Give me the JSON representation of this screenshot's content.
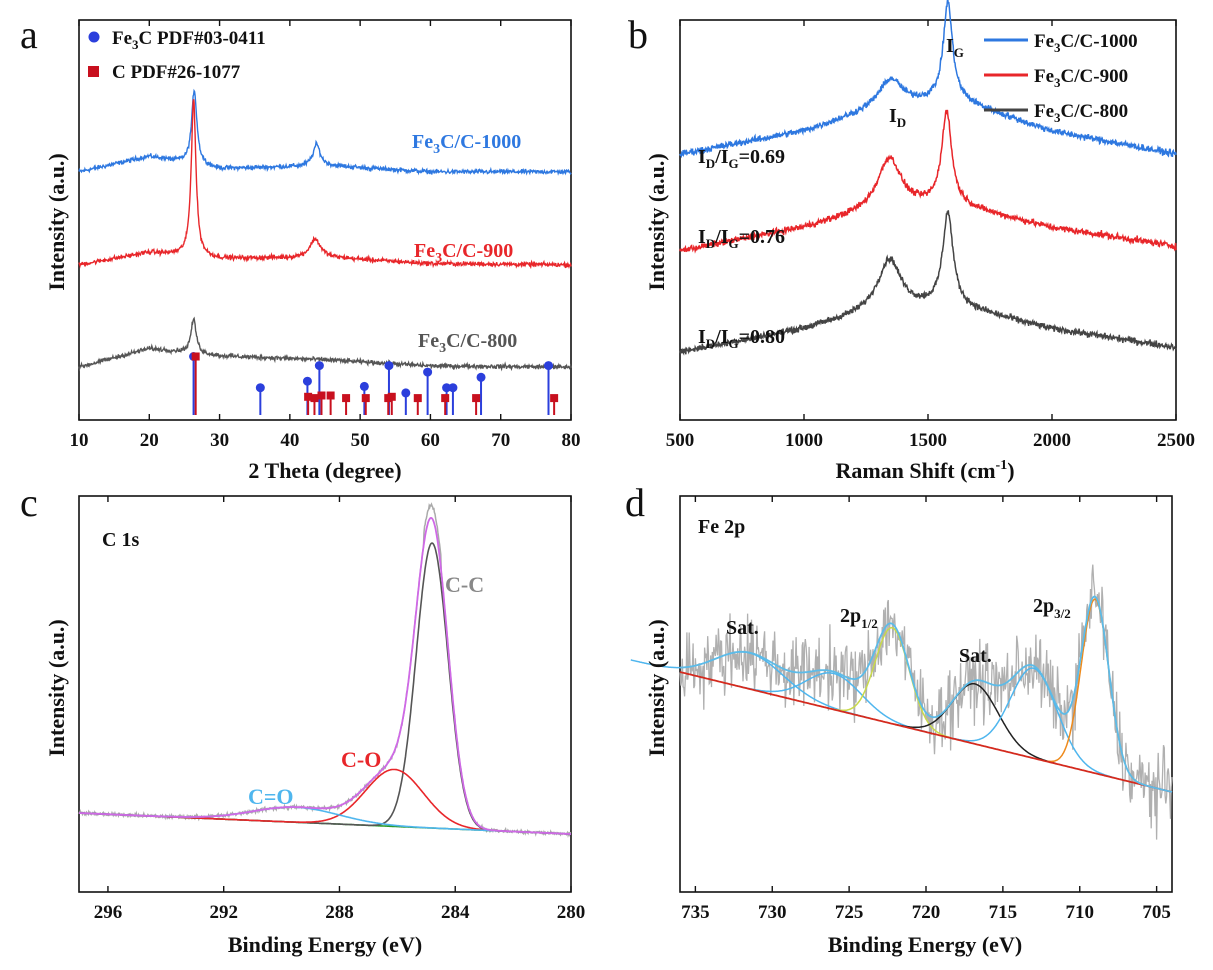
{
  "panels": {
    "a": {
      "letter": "a",
      "xlabel": "2 Theta (degree)",
      "ylabel": "Intensity (a.u.)",
      "xticks": [
        "10",
        "20",
        "30",
        "40",
        "50",
        "60",
        "70",
        "80"
      ],
      "legend": [
        {
          "pre": "Fe",
          "sub": "3",
          "post": "C PDF#03-0411",
          "color": "#2b3fdc",
          "marker": "circle"
        },
        {
          "pre": "C PDF#26-1077",
          "sub": "",
          "post": "",
          "color": "#c8101e",
          "marker": "square"
        }
      ],
      "series_labels": [
        {
          "pre": "Fe",
          "sub": "3",
          "post": "C/C-1000",
          "color": "#2e78e0"
        },
        {
          "pre": "Fe",
          "sub": "3",
          "post": "C/C-900",
          "color": "#e8262a"
        },
        {
          "pre": "Fe",
          "sub": "3",
          "post": "C/C-800",
          "color": "#555555"
        }
      ]
    },
    "b": {
      "letter": "b",
      "xlabel": "Raman Shift (cm",
      "xlabel_sup": "-1",
      "xlabel_post": ")",
      "ylabel": "Intensity (a.u.)",
      "xticks": [
        "500",
        "1000",
        "1500",
        "2000",
        "2500"
      ],
      "legend": [
        {
          "pre": "Fe",
          "sub": "3",
          "post": "C/C-1000",
          "color": "#2e78e0"
        },
        {
          "pre": "Fe",
          "sub": "3",
          "post": "C/C-900",
          "color": "#e8262a"
        },
        {
          "pre": "Fe",
          "sub": "3",
          "post": "C/C-800",
          "color": "#444444"
        }
      ],
      "peak_labels": [
        {
          "main": "I",
          "sub": "D"
        },
        {
          "main": "I",
          "sub": "G"
        }
      ],
      "ratios": [
        {
          "i": "I",
          "d": "D",
          "slash": "/I",
          "g": "G",
          "val": "=0.69"
        },
        {
          "i": "I",
          "d": "D",
          "slash": "/I",
          "g": "G",
          "val": "=0.76"
        },
        {
          "i": "I",
          "d": "D",
          "slash": "/I",
          "g": "G",
          "val": "=0.80"
        }
      ]
    },
    "c": {
      "letter": "c",
      "title": "C 1s",
      "xlabel": "Binding Energy (eV)",
      "ylabel": "Intensity (a.u.)",
      "xticks": [
        "296",
        "292",
        "288",
        "284",
        "280"
      ],
      "peak_labels": [
        {
          "text": "C-C",
          "color": "#888888"
        },
        {
          "text": "C-O",
          "color": "#e8262a"
        },
        {
          "text": "C=O",
          "color": "#4fb6ee"
        }
      ]
    },
    "d": {
      "letter": "d",
      "title": "Fe 2p",
      "xlabel": "Binding Energy (eV)",
      "ylabel": "Intensity (a.u.)",
      "xticks": [
        "735",
        "730",
        "725",
        "720",
        "715",
        "710",
        "705"
      ],
      "peak_labels": [
        {
          "pre": "Sat.",
          "sub": ""
        },
        {
          "pre": "2p",
          "sub": "1/2"
        },
        {
          "pre": "Sat.",
          "sub": ""
        },
        {
          "pre": "2p",
          "sub": "3/2"
        }
      ]
    }
  },
  "chart_data": [
    {
      "panel": "a",
      "type": "line",
      "xlabel": "2 Theta (degree)",
      "ylabel": "Intensity (a.u.)",
      "xlim": [
        10,
        80
      ],
      "series": [
        {
          "name": "Fe3C/C-1000",
          "color": "#2e78e0",
          "offset": 3.6,
          "background": [
            [
              10,
              0.0
            ],
            [
              20,
              0.25
            ],
            [
              30,
              0.05
            ],
            [
              45,
              0.1
            ],
            [
              60,
              0.0
            ],
            [
              80,
              0.0
            ]
          ],
          "peaks": [
            [
              26.4,
              1.2,
              0.45
            ],
            [
              43.8,
              0.35,
              0.6
            ]
          ]
        },
        {
          "name": "Fe3C/C-900",
          "color": "#e8262a",
          "offset": 2.1,
          "background": [
            [
              10,
              0.0
            ],
            [
              20,
              0.2
            ],
            [
              30,
              0.1
            ],
            [
              45,
              0.12
            ],
            [
              60,
              0.02
            ],
            [
              80,
              0.0
            ]
          ],
          "peaks": [
            [
              26.3,
              2.55,
              0.4
            ],
            [
              43.6,
              0.3,
              0.9
            ]
          ]
        },
        {
          "name": "Fe3C/C-800",
          "color": "#555555",
          "offset": 0.45,
          "background": [
            [
              10,
              0.0
            ],
            [
              20,
              0.3
            ],
            [
              30,
              0.18
            ],
            [
              45,
              0.12
            ],
            [
              60,
              0.02
            ],
            [
              80,
              0.0
            ]
          ],
          "peaks": [
            [
              26.3,
              0.55,
              0.45
            ]
          ]
        }
      ],
      "reference_fe3c": [
        [
          26.3,
          0.45
        ],
        [
          35.8,
          0.21
        ],
        [
          42.5,
          0.26
        ],
        [
          44.2,
          0.38
        ],
        [
          50.6,
          0.22
        ],
        [
          54.1,
          0.38
        ],
        [
          56.5,
          0.17
        ],
        [
          59.6,
          0.33
        ],
        [
          62.3,
          0.21
        ],
        [
          63.2,
          0.21
        ],
        [
          67.2,
          0.29
        ],
        [
          76.8,
          0.38
        ]
      ],
      "reference_c": [
        [
          26.6,
          0.45
        ],
        [
          42.6,
          0.14
        ],
        [
          43.5,
          0.13
        ],
        [
          44.5,
          0.15
        ],
        [
          45.8,
          0.15
        ],
        [
          48.0,
          0.13
        ],
        [
          50.8,
          0.13
        ],
        [
          54.0,
          0.13
        ],
        [
          54.5,
          0.14
        ],
        [
          58.2,
          0.13
        ],
        [
          62.1,
          0.13
        ],
        [
          66.5,
          0.13
        ],
        [
          77.6,
          0.13
        ]
      ]
    },
    {
      "panel": "b",
      "type": "line",
      "xlabel": "Raman Shift (cm-1)",
      "ylabel": "Intensity (a.u.)",
      "xlim": [
        500,
        2500
      ],
      "series": [
        {
          "name": "Fe3C/C-1000",
          "color": "#2e78e0",
          "offset": 2.15,
          "background": [
            [
              500,
              0.0
            ],
            [
              1000,
              0.25
            ],
            [
              1300,
              0.5
            ],
            [
              1600,
              0.6
            ],
            [
              2000,
              0.25
            ],
            [
              2500,
              0.0
            ]
          ],
          "peaks": [
            [
              1350,
              0.3,
              55
            ],
            [
              1580,
              1.05,
              22
            ]
          ]
        },
        {
          "name": "Fe3C/C-900",
          "color": "#e8262a",
          "offset": 1.1,
          "background": [
            [
              500,
              0.0
            ],
            [
              1000,
              0.25
            ],
            [
              1300,
              0.45
            ],
            [
              1600,
              0.5
            ],
            [
              2000,
              0.25
            ],
            [
              2500,
              0.05
            ]
          ],
          "peaks": [
            [
              1345,
              0.55,
              55
            ],
            [
              1575,
              1.0,
              24
            ]
          ]
        },
        {
          "name": "Fe3C/C-800",
          "color": "#444444",
          "offset": 0.0,
          "background": [
            [
              500,
              0.0
            ],
            [
              1000,
              0.25
            ],
            [
              1300,
              0.45
            ],
            [
              1600,
              0.5
            ],
            [
              2000,
              0.25
            ],
            [
              2500,
              0.05
            ]
          ],
          "peaks": [
            [
              1345,
              0.55,
              55
            ],
            [
              1580,
              1.0,
              25
            ]
          ]
        }
      ]
    },
    {
      "panel": "c",
      "type": "line",
      "xlabel": "Binding Energy (eV)",
      "ylabel": "Intensity (a.u.)",
      "xlim": [
        297,
        280
      ],
      "components": [
        {
          "name": "C-C",
          "color": "#555555",
          "center": 284.8,
          "height": 0.95,
          "width": 0.55
        },
        {
          "name": "C-O",
          "color": "#e8262a",
          "center": 286.1,
          "height": 0.19,
          "width": 1.0
        },
        {
          "name": "C=O",
          "color": "#4fb6ee",
          "center": 289.5,
          "height": 0.05,
          "width": 1.5
        }
      ],
      "baseline": {
        "color": "#2a9a2a",
        "from": [
          297,
          0.07
        ],
        "to": [
          280,
          0.0
        ]
      },
      "envelope_color": "#cf69e6",
      "raw_color": "#aaaaaa"
    },
    {
      "panel": "d",
      "type": "line",
      "xlabel": "Binding Energy (eV)",
      "ylabel": "Intensity (a.u.)",
      "xlim": [
        736,
        704
      ],
      "components": [
        {
          "name": "Sat.",
          "color": "#4fb6ee",
          "center": 731.5,
          "height": 0.12,
          "width": 2.2
        },
        {
          "name": "2p1/2 satellite",
          "color": "#4fb6ee",
          "center": 726.0,
          "height": 0.12,
          "width": 1.8
        },
        {
          "name": "2p1/2",
          "color": "#c9d94a",
          "center": 722.2,
          "height": 0.32,
          "width": 1.1
        },
        {
          "name": "Sat.",
          "color": "#222222",
          "center": 716.8,
          "height": 0.2,
          "width": 1.5
        },
        {
          "name": "2p3/2 satellite",
          "color": "#4fb6ee",
          "center": 713.0,
          "height": 0.3,
          "width": 1.5
        },
        {
          "name": "2p3/2",
          "color": "#ee8a1c",
          "center": 709.0,
          "height": 0.58,
          "width": 0.9
        }
      ],
      "baseline": {
        "color": "#d42a1e",
        "from": [
          736,
          0.66
        ],
        "to": [
          704,
          0.26
        ]
      },
      "envelope_color": "#5cbbe8",
      "raw_color": "#b0b0b0"
    }
  ]
}
